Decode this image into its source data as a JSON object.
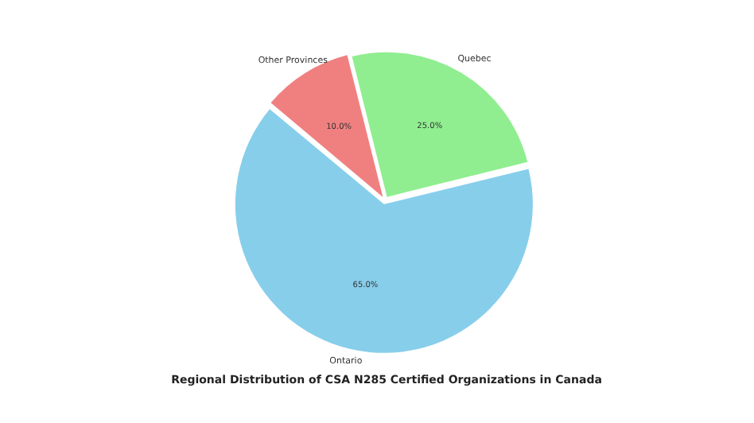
{
  "chart_data": {
    "type": "pie",
    "title": "Regional Distribution of CSA N285 Certified Organizations in Canada",
    "categories": [
      "Quebec",
      "Ontario",
      "Other Provinces"
    ],
    "values": [
      25,
      65,
      10
    ],
    "colors": [
      "#90ee90",
      "#87ceeb",
      "#f08080"
    ],
    "value_labels": [
      "25.0%",
      "65.0%",
      "10.0%"
    ],
    "legend": false
  }
}
